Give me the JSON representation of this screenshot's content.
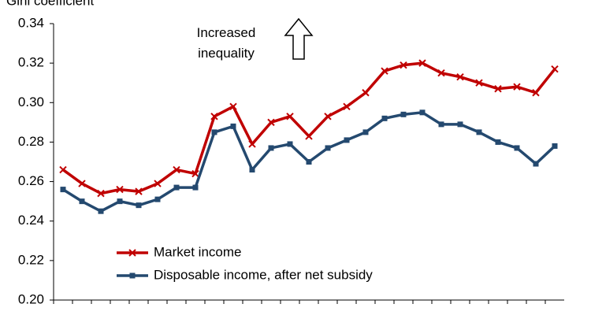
{
  "chart_data": {
    "type": "line",
    "y_label": "Gini coefficient",
    "annotation": "Increased\ninequality",
    "categories": [
      null,
      null,
      null,
      null,
      null,
      null,
      null,
      null,
      null,
      null,
      null,
      null,
      null,
      null,
      null,
      null,
      null,
      null,
      null,
      null,
      null,
      null,
      null,
      null,
      null,
      null,
      null
    ],
    "series": [
      {
        "name": "Market income",
        "color": "#c00000",
        "marker": "x",
        "values": [
          0.266,
          0.259,
          0.254,
          0.256,
          0.255,
          0.259,
          0.266,
          0.264,
          0.293,
          0.298,
          0.279,
          0.29,
          0.293,
          0.283,
          0.293,
          0.298,
          0.305,
          0.316,
          0.319,
          0.32,
          0.315,
          0.313,
          0.31,
          0.307,
          0.308,
          0.305,
          0.317
        ]
      },
      {
        "name": "Disposable income, after net subsidy",
        "color": "#24496f",
        "marker": "square",
        "values": [
          0.256,
          0.25,
          0.245,
          0.25,
          0.248,
          0.251,
          0.257,
          0.257,
          0.285,
          0.288,
          0.266,
          0.277,
          0.279,
          0.27,
          0.277,
          0.281,
          0.285,
          0.292,
          0.294,
          0.295,
          0.289,
          0.289,
          0.285,
          0.28,
          0.277,
          0.269,
          0.278
        ]
      }
    ],
    "ylim": [
      0.2,
      0.34
    ],
    "yticks": [
      {
        "value": 0.2,
        "label": "0.20"
      },
      {
        "value": 0.22,
        "label": "0.22"
      },
      {
        "value": 0.24,
        "label": "0.24"
      },
      {
        "value": 0.26,
        "label": "0.26"
      },
      {
        "value": 0.28,
        "label": "0.28"
      },
      {
        "value": 0.3,
        "label": "0.30"
      },
      {
        "value": 0.32,
        "label": "0.32"
      },
      {
        "value": 0.34,
        "label": "0.34"
      }
    ],
    "grid": false,
    "legend": "lower left"
  }
}
